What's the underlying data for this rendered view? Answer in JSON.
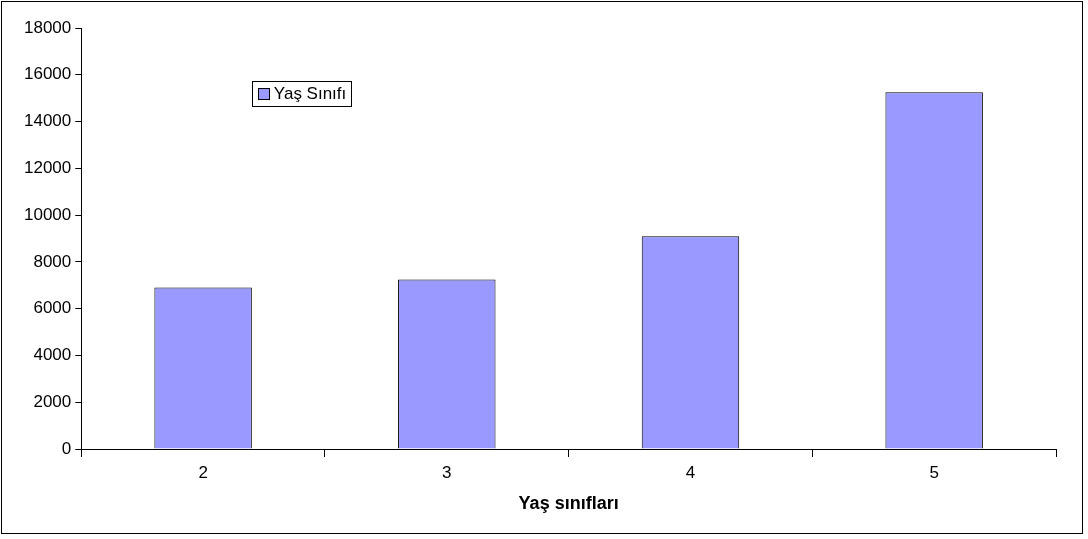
{
  "chart_data": {
    "type": "bar",
    "xlabel": "Yaş sınıfları",
    "categories": [
      "2",
      "3",
      "4",
      "5"
    ],
    "series": [
      {
        "name": "Yaş Sınıfı",
        "color": "#9999ff",
        "values": [
          6900,
          7250,
          9100,
          15250
        ]
      }
    ],
    "ylim": [
      0,
      18000
    ],
    "yticks": [
      0,
      2000,
      4000,
      6000,
      8000,
      10000,
      12000,
      14000,
      16000,
      18000
    ],
    "grid": false,
    "legend": "top left"
  }
}
